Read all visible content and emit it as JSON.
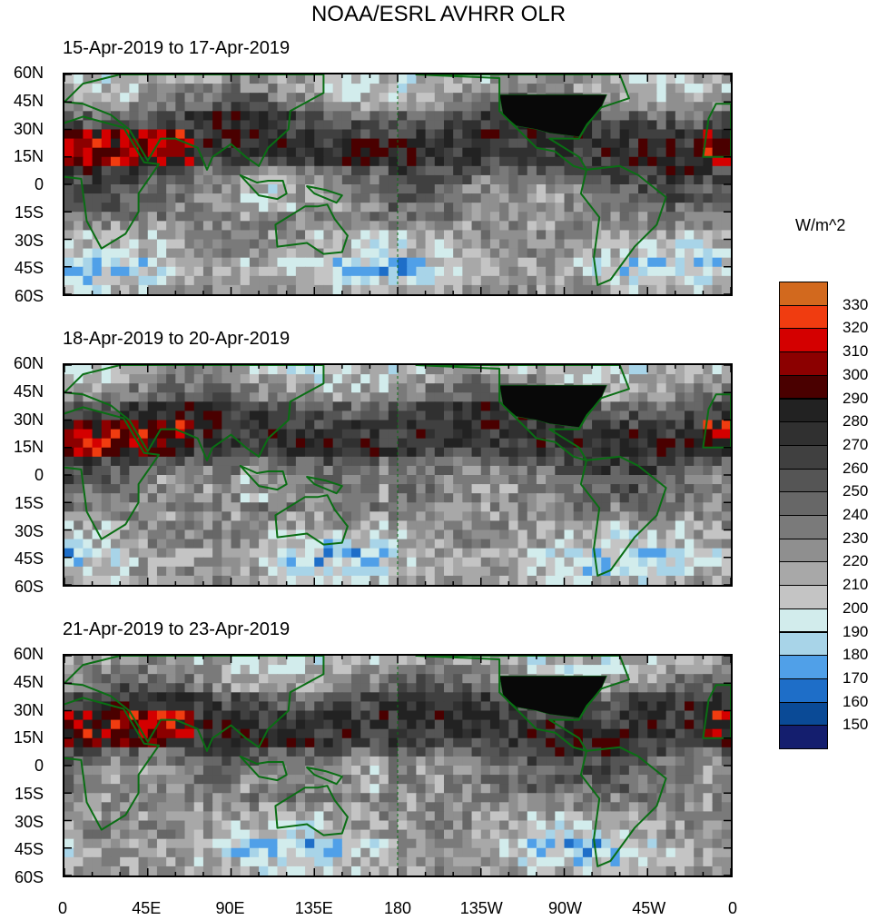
{
  "figure": {
    "title": "NOAA/ESRL AVHRR OLR"
  },
  "panels": [
    {
      "title": "15-Apr-2019 to 17-Apr-2019"
    },
    {
      "title": "18-Apr-2019 to 20-Apr-2019"
    },
    {
      "title": "21-Apr-2019 to 23-Apr-2019"
    }
  ],
  "axes": {
    "lat_labels": [
      "60N",
      "45N",
      "30N",
      "15N",
      "0",
      "15S",
      "30S",
      "45S",
      "60S"
    ],
    "lon_labels": [
      "0",
      "45E",
      "90E",
      "135E",
      "180",
      "135W",
      "90W",
      "45W",
      "0"
    ],
    "lat_range": [
      -60,
      60
    ],
    "lon_range": [
      0,
      360
    ]
  },
  "colorbar": {
    "title": "W/m^2",
    "levels": [
      "330",
      "320",
      "310",
      "300",
      "290",
      "280",
      "270",
      "260",
      "250",
      "240",
      "230",
      "220",
      "210",
      "200",
      "190",
      "180",
      "170",
      "160",
      "150"
    ],
    "colors": [
      "#d2691e",
      "#f03c10",
      "#d40000",
      "#8c0000",
      "#4a0000",
      "#222222",
      "#303030",
      "#404040",
      "#555555",
      "#676767",
      "#7a7a7a",
      "#8f8f8f",
      "#a8a8a8",
      "#c4c4c4",
      "#d2ecec",
      "#a8d4e8",
      "#50a0e8",
      "#1e6ec8",
      "#0a4a96",
      "#141e6e"
    ]
  },
  "colors": {
    "coastline": "#0a6e14",
    "land_us": "#080808"
  }
}
